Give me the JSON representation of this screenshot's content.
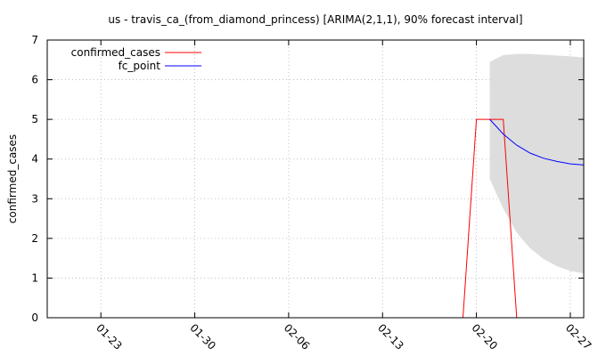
{
  "chart_data": {
    "type": "line",
    "title": "us - travis_ca_(from_diamond_princess) [ARIMA(2,1,1), 90% forecast interval]",
    "xlabel": "",
    "ylabel": "confirmed_cases",
    "x_range": [
      "2020-01-19",
      "2020-02-28"
    ],
    "ylim": [
      0,
      7
    ],
    "y_ticks": [
      0,
      1,
      2,
      3,
      4,
      5,
      6,
      7
    ],
    "y_tick_labels": [
      "0",
      "1",
      "2",
      "3",
      "4",
      "5",
      "6",
      "7"
    ],
    "x_ticks": [
      "2020-01-23",
      "2020-01-30",
      "2020-02-06",
      "2020-02-13",
      "2020-02-20",
      "2020-02-27"
    ],
    "x_tick_labels": [
      "01-23",
      "01-30",
      "02-06",
      "02-13",
      "02-20",
      "02-27"
    ],
    "grid": true,
    "legend_position": "top-left",
    "series": [
      {
        "name": "confirmed_cases",
        "color": "#ff0000",
        "x": [
          "2020-02-19",
          "2020-02-20",
          "2020-02-21",
          "2020-02-22",
          "2020-02-23"
        ],
        "y": [
          0,
          5,
          5,
          5,
          0
        ]
      },
      {
        "name": "fc_point",
        "color": "#0000ff",
        "x": [
          "2020-02-21",
          "2020-02-22",
          "2020-02-23",
          "2020-02-24",
          "2020-02-25",
          "2020-02-26",
          "2020-02-27",
          "2020-02-28"
        ],
        "y": [
          5.0,
          4.63,
          4.35,
          4.15,
          4.02,
          3.94,
          3.88,
          3.85
        ]
      }
    ],
    "forecast_interval": {
      "color": "#dddddd",
      "x": [
        "2020-02-21",
        "2020-02-22",
        "2020-02-23",
        "2020-02-24",
        "2020-02-25",
        "2020-02-26",
        "2020-02-27",
        "2020-02-28"
      ],
      "lower": [
        3.5,
        2.75,
        2.15,
        1.75,
        1.48,
        1.3,
        1.18,
        1.12
      ],
      "upper": [
        6.45,
        6.62,
        6.65,
        6.65,
        6.63,
        6.61,
        6.59,
        6.56
      ]
    }
  }
}
